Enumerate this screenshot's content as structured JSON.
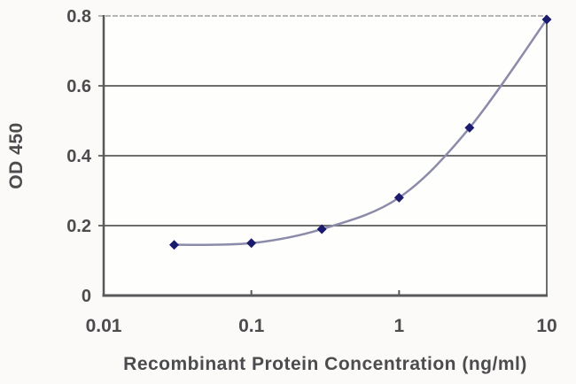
{
  "chart_data": {
    "type": "line",
    "title": "",
    "xlabel": "Recombinant Protein Concentration (ng/ml)",
    "ylabel": "OD 450",
    "x_scale": "log",
    "xlim": [
      0.01,
      10
    ],
    "ylim": [
      0,
      0.8
    ],
    "x": [
      0.03,
      0.1,
      0.3,
      1,
      3,
      10
    ],
    "series": [
      {
        "name": "OD 450",
        "values": [
          0.145,
          0.15,
          0.19,
          0.28,
          0.48,
          0.79
        ]
      }
    ],
    "x_ticks": [
      0.01,
      0.1,
      1,
      10
    ],
    "x_tick_labels": [
      "0.01",
      "0.1",
      "1",
      "10"
    ],
    "y_ticks": [
      0,
      0.2,
      0.4,
      0.6,
      0.8
    ],
    "y_tick_labels": [
      "0",
      "0.2",
      "0.4",
      "0.6",
      "0.8"
    ],
    "grid": true,
    "legend": false,
    "marker": "diamond"
  },
  "colors": {
    "background": "#fbfaf8",
    "plot_background": "#fefefd",
    "grid": "#6e6e6e",
    "grid_top": "#b5b5b3",
    "axis": "#58585a",
    "line": "#8c8caa",
    "marker": "#1b1b6e",
    "text": "#4c4c4e"
  }
}
